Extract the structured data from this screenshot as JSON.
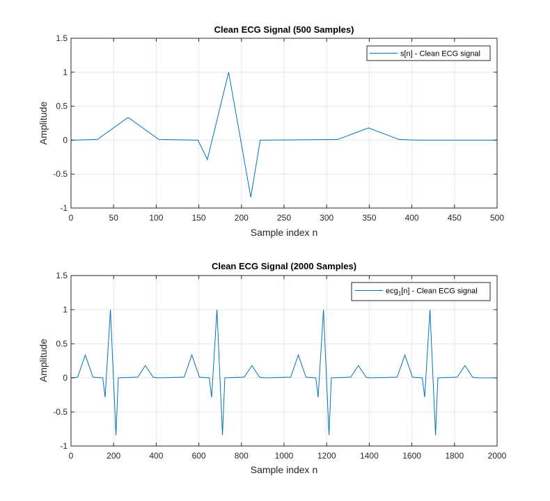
{
  "chart_data": [
    {
      "type": "line",
      "title": "Clean ECG Signal (500 Samples)",
      "xlabel": "Sample index n",
      "ylabel": "Amplitude",
      "xlim": [
        0,
        500
      ],
      "ylim": [
        -1,
        1.5
      ],
      "xticks": [
        0,
        50,
        100,
        150,
        200,
        250,
        300,
        350,
        400,
        450,
        500
      ],
      "yticks": [
        -1,
        -0.5,
        0,
        0.5,
        1,
        1.5
      ],
      "grid": true,
      "legend_position": "top-right",
      "series": [
        {
          "name": "s[n] - Clean ECG signal",
          "name_parts": {
            "base": "s[n] - Clean ECG signal",
            "sub": "",
            "rest": ""
          },
          "color": "#0072bd",
          "x": [
            0,
            31,
            67,
            103,
            149,
            160,
            185,
            211,
            222,
            313,
            349,
            385,
            405,
            500
          ],
          "y": [
            0,
            0.01,
            0.335,
            0.01,
            0,
            -0.285,
            1.0,
            -0.84,
            0,
            0.01,
            0.18,
            0.01,
            0,
            0
          ]
        }
      ]
    },
    {
      "type": "line",
      "title": "Clean ECG Signal (2000 Samples)",
      "xlabel": "Sample index n",
      "ylabel": "Amplitude",
      "xlim": [
        0,
        2000
      ],
      "ylim": [
        -1,
        1.5
      ],
      "xticks": [
        0,
        200,
        400,
        600,
        800,
        1000,
        1200,
        1400,
        1600,
        1800,
        2000
      ],
      "yticks": [
        -1,
        -0.5,
        0,
        0.5,
        1,
        1.5
      ],
      "grid": true,
      "legend_position": "top-right",
      "series": [
        {
          "name": "ecg1[n] - Clean ECG signal",
          "name_parts": {
            "base": "ecg",
            "sub": "1",
            "rest": "[n] - Clean ECG signal"
          },
          "color": "#0072bd",
          "x": [
            0,
            31,
            67,
            103,
            149,
            160,
            185,
            211,
            222,
            313,
            349,
            385,
            405,
            531,
            567,
            603,
            649,
            660,
            685,
            711,
            722,
            813,
            849,
            885,
            905,
            1031,
            1067,
            1103,
            1149,
            1160,
            1185,
            1211,
            1222,
            1313,
            1349,
            1385,
            1405,
            1531,
            1567,
            1603,
            1649,
            1660,
            1685,
            1711,
            1722,
            1813,
            1849,
            1885,
            1905,
            2000
          ],
          "y": [
            0,
            0.01,
            0.335,
            0.01,
            0,
            -0.285,
            1.0,
            -0.84,
            0,
            0.01,
            0.18,
            0.01,
            0,
            0.01,
            0.335,
            0.01,
            0,
            -0.285,
            1.0,
            -0.84,
            0,
            0.01,
            0.18,
            0.01,
            0,
            0.01,
            0.335,
            0.01,
            0,
            -0.285,
            1.0,
            -0.84,
            0,
            0.01,
            0.18,
            0.01,
            0,
            0.01,
            0.335,
            0.01,
            0,
            -0.285,
            1.0,
            -0.84,
            0,
            0.01,
            0.18,
            0.01,
            0,
            0
          ]
        }
      ]
    }
  ]
}
